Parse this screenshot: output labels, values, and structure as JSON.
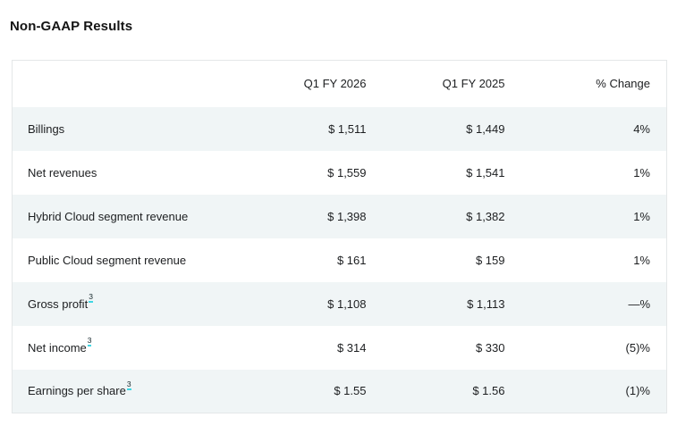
{
  "page": {
    "title": "Non-GAAP Results"
  },
  "table": {
    "columns": [
      "",
      "Q1 FY 2026",
      "Q1 FY 2025",
      "% Change"
    ],
    "rows": [
      {
        "label": "Billings",
        "footnote": "",
        "q1_fy2026": "$ 1,511",
        "q1_fy2025": "$ 1,449",
        "pct_change": "4%"
      },
      {
        "label": "Net revenues",
        "footnote": "",
        "q1_fy2026": "$ 1,559",
        "q1_fy2025": "$ 1,541",
        "pct_change": "1%"
      },
      {
        "label": "Hybrid Cloud segment revenue",
        "footnote": "",
        "q1_fy2026": "$ 1,398",
        "q1_fy2025": "$ 1,382",
        "pct_change": "1%"
      },
      {
        "label": "Public Cloud segment revenue",
        "footnote": "",
        "q1_fy2026": "$ 161",
        "q1_fy2025": "$ 159",
        "pct_change": "1%"
      },
      {
        "label": "Gross profit",
        "footnote": "3",
        "q1_fy2026": "$ 1,108",
        "q1_fy2025": "$ 1,113",
        "pct_change": "—%"
      },
      {
        "label": "Net income",
        "footnote": "3",
        "q1_fy2026": "$ 314",
        "q1_fy2025": "$ 330",
        "pct_change": "(5)%"
      },
      {
        "label": "Earnings per share",
        "footnote": "3",
        "q1_fy2026": "$ 1.55",
        "q1_fy2025": "$ 1.56",
        "pct_change": "(1)%"
      }
    ],
    "colors": {
      "alt_row_background": "#f0f5f6",
      "table_border": "#e4e7e8",
      "text": "#1c1e20",
      "footnote_underline": "#3fd6e3"
    }
  }
}
